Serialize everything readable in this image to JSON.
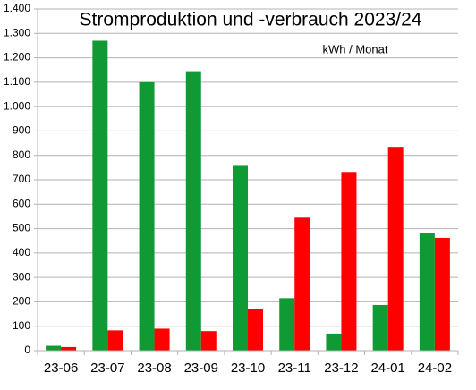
{
  "chart_data": {
    "type": "bar",
    "title": "Stromproduktion und -verbrauch 2023/24",
    "annotation": "kWh / Monat",
    "categories": [
      "23-06",
      "23-07",
      "23-08",
      "23-09",
      "23-10",
      "23-11",
      "23-12",
      "24-01",
      "24-02"
    ],
    "series": [
      {
        "color": "#109a34",
        "values": [
          20,
          1270,
          1100,
          1145,
          757,
          215,
          70,
          187,
          480
        ]
      },
      {
        "color": "#ff0000",
        "values": [
          15,
          83,
          90,
          80,
          172,
          545,
          732,
          835,
          462
        ]
      }
    ],
    "ylim": [
      0,
      1400
    ],
    "yticks": [
      0,
      100,
      200,
      300,
      400,
      500,
      600,
      700,
      800,
      900,
      {
        "value": 1000,
        "label": "1.000"
      },
      {
        "value": 1100,
        "label": "1.100"
      },
      {
        "value": 1200,
        "label": "1.200"
      },
      {
        "value": 1300,
        "label": "1.300"
      },
      {
        "value": 1400,
        "label": "1.400"
      }
    ],
    "grid": true
  }
}
